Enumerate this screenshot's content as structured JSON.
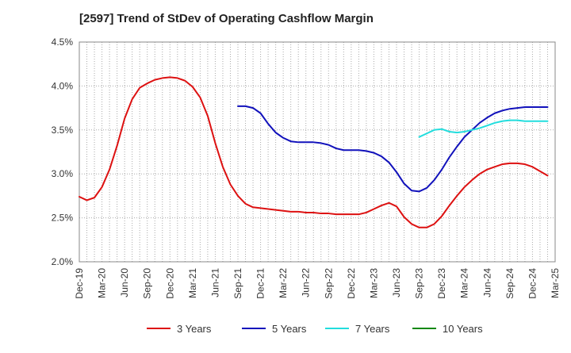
{
  "chart_data": {
    "type": "line",
    "title": "[2597]  Trend of StDev of Operating Cashflow Margin",
    "xlabel": "",
    "ylabel": "",
    "ylim": [
      2.0,
      4.5
    ],
    "y_ticks": [
      "2.0%",
      "2.5%",
      "3.0%",
      "3.5%",
      "4.0%",
      "4.5%"
    ],
    "x_ticks": [
      "Dec-19",
      "Mar-20",
      "Jun-20",
      "Sep-20",
      "Dec-20",
      "Mar-21",
      "Jun-21",
      "Sep-21",
      "Dec-21",
      "Mar-22",
      "Jun-22",
      "Sep-22",
      "Dec-22",
      "Mar-23",
      "Jun-23",
      "Sep-23",
      "Dec-23",
      "Mar-24",
      "Jun-24",
      "Sep-24",
      "Dec-24",
      "Mar-25"
    ],
    "grid": true,
    "legend_position": "bottom",
    "series": [
      {
        "name": "3 Years",
        "color": "#dd1111",
        "start_month": 0,
        "values": [
          2.74,
          2.7,
          2.73,
          2.85,
          3.05,
          3.32,
          3.63,
          3.85,
          3.98,
          4.03,
          4.07,
          4.09,
          4.1,
          4.09,
          4.06,
          3.99,
          3.87,
          3.66,
          3.35,
          3.08,
          2.88,
          2.75,
          2.66,
          2.62,
          2.61,
          2.6,
          2.59,
          2.58,
          2.57,
          2.57,
          2.56,
          2.56,
          2.55,
          2.55,
          2.54,
          2.54,
          2.54,
          2.54,
          2.56,
          2.6,
          2.64,
          2.67,
          2.63,
          2.51,
          2.43,
          2.39,
          2.39,
          2.43,
          2.52,
          2.64,
          2.75,
          2.85,
          2.93,
          3.0,
          3.05,
          3.08,
          3.11,
          3.12,
          3.12,
          3.11,
          3.08,
          3.03,
          2.98
        ]
      },
      {
        "name": "5 Years",
        "color": "#1111bb",
        "start_month": 21,
        "values": [
          3.77,
          3.77,
          3.75,
          3.69,
          3.57,
          3.47,
          3.41,
          3.37,
          3.36,
          3.36,
          3.36,
          3.35,
          3.33,
          3.29,
          3.27,
          3.27,
          3.27,
          3.26,
          3.24,
          3.2,
          3.13,
          3.02,
          2.89,
          2.81,
          2.8,
          2.84,
          2.93,
          3.05,
          3.19,
          3.31,
          3.42,
          3.5,
          3.58,
          3.64,
          3.69,
          3.72,
          3.74,
          3.75,
          3.76,
          3.76,
          3.76,
          3.76
        ]
      },
      {
        "name": "7 Years",
        "color": "#22dddd",
        "start_month": 45,
        "values": [
          3.42,
          3.46,
          3.5,
          3.51,
          3.48,
          3.47,
          3.48,
          3.5,
          3.52,
          3.55,
          3.58,
          3.6,
          3.61,
          3.61,
          3.6,
          3.6,
          3.6,
          3.6
        ]
      },
      {
        "name": "10 Years",
        "color": "#118811",
        "start_month": 0,
        "values": []
      }
    ]
  }
}
